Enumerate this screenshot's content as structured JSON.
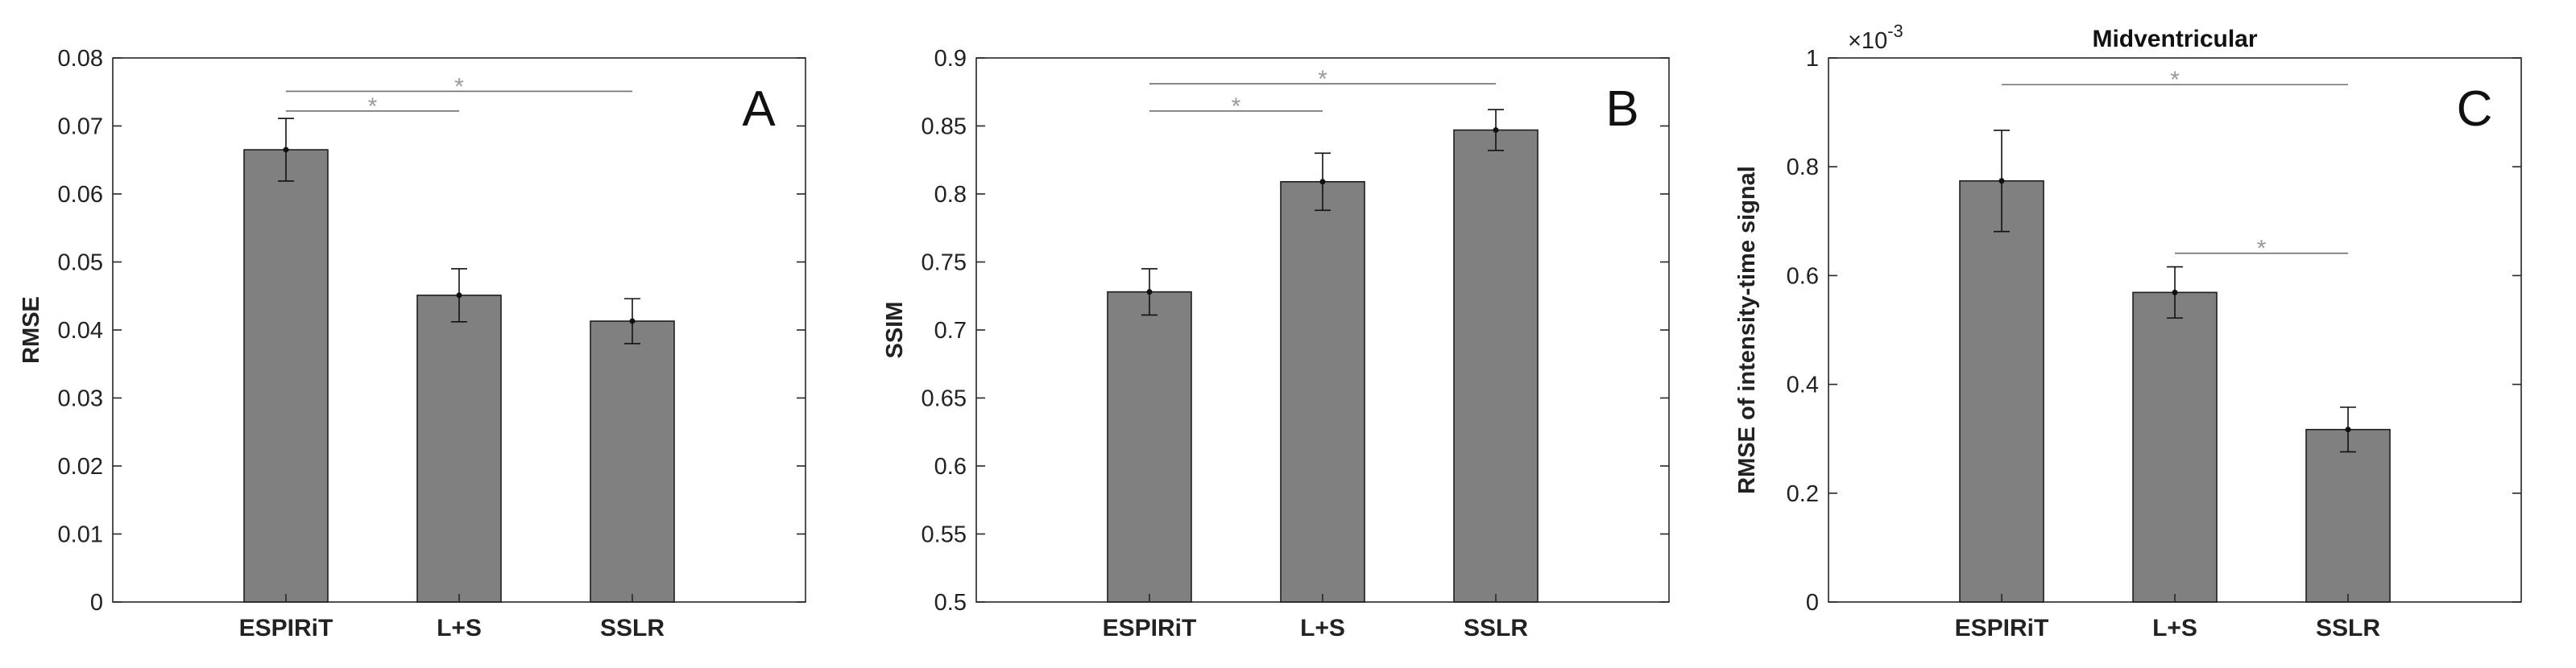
{
  "chart_data": [
    {
      "type": "bar",
      "panel_label": "A",
      "title": "",
      "xlabel": "",
      "ylabel": "RMSE",
      "categories": [
        "ESPIRiT",
        "L+S",
        "SSLR"
      ],
      "values": [
        0.0665,
        0.0451,
        0.0413
      ],
      "errors": [
        0.0046,
        0.0039,
        0.0033
      ],
      "ylim": [
        0,
        0.08
      ],
      "yticks": [
        0,
        0.01,
        0.02,
        0.03,
        0.04,
        0.05,
        0.06,
        0.07,
        0.08
      ],
      "ytick_labels": [
        "0",
        "0.01",
        "0.02",
        "0.03",
        "0.04",
        "0.05",
        "0.06",
        "0.07",
        "0.08"
      ],
      "exponent_label": "",
      "bar_color": "#808080",
      "significance": [
        {
          "from": 0,
          "to": 1,
          "y": 0.0722,
          "label": "*"
        },
        {
          "from": 0,
          "to": 2,
          "y": 0.0751,
          "label": "*"
        }
      ]
    },
    {
      "type": "bar",
      "panel_label": "B",
      "title": "",
      "xlabel": "",
      "ylabel": "SSIM",
      "categories": [
        "ESPIRiT",
        "L+S",
        "SSLR"
      ],
      "values": [
        0.728,
        0.809,
        0.847
      ],
      "errors": [
        0.017,
        0.021,
        0.015
      ],
      "ylim": [
        0.5,
        0.9
      ],
      "yticks": [
        0.5,
        0.55,
        0.6,
        0.65,
        0.7,
        0.75,
        0.8,
        0.85,
        0.9
      ],
      "ytick_labels": [
        "0.5",
        "0.55",
        "0.6",
        "0.65",
        "0.7",
        "0.75",
        "0.8",
        "0.85",
        "0.9"
      ],
      "exponent_label": "",
      "bar_color": "#808080",
      "significance": [
        {
          "from": 0,
          "to": 1,
          "y": 0.861,
          "label": "*"
        },
        {
          "from": 0,
          "to": 2,
          "y": 0.881,
          "label": "*"
        }
      ]
    },
    {
      "type": "bar",
      "panel_label": "C",
      "title": "Midventricular",
      "xlabel": "",
      "ylabel": "RMSE of intensity-time signal",
      "categories": [
        "ESPIRiT",
        "L+S",
        "SSLR"
      ],
      "values": [
        0.774,
        0.569,
        0.317
      ],
      "errors": [
        0.093,
        0.047,
        0.041
      ],
      "ylim": [
        0,
        1
      ],
      "yticks": [
        0,
        0.2,
        0.4,
        0.6,
        0.8,
        1
      ],
      "ytick_labels": [
        "0",
        "0.2",
        "0.4",
        "0.6",
        "0.8",
        "1"
      ],
      "exponent_label": "-3",
      "bar_color": "#808080",
      "significance": [
        {
          "from": 0,
          "to": 2,
          "y": 0.951,
          "label": "*"
        },
        {
          "from": 1,
          "to": 2,
          "y": 0.641,
          "label": "*"
        }
      ]
    }
  ]
}
